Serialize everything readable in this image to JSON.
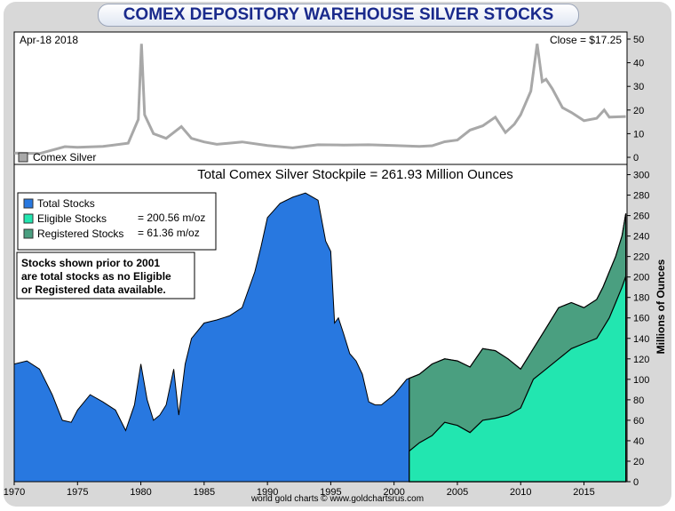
{
  "page": {
    "title": "COMEX DEPOSITORY WAREHOUSE SILVER STOCKS",
    "footer": "world gold charts © www.goldchartsrus.com"
  },
  "colors": {
    "total": "#2878e0",
    "eligible": "#22e6b0",
    "registered": "#4a9f80",
    "silver_line": "#a8a8a8",
    "title_text": "#1a2a8c",
    "note_text": "#1010cc"
  },
  "top_panel": {
    "date_label": "Apr-18  2018",
    "close_label": "Close = $17.25",
    "legend_label": "Comex Silver"
  },
  "main_panel": {
    "stockpile_label": "Total Comex Silver Stockpile = 261.93 Million Ounces",
    "legend": [
      {
        "label": "Total Stocks",
        "color": "#2878e0",
        "value": ""
      },
      {
        "label": "Eligible Stocks",
        "color": "#22e6b0",
        "value": "= 200.56 m/oz"
      },
      {
        "label": "Registered Stocks",
        "color": "#4a9f80",
        "value": "= 61.36 m/oz"
      }
    ],
    "note_lines": [
      "Stocks shown prior to 2001",
      "are total stocks as no Eligible",
      "or Registered data available."
    ],
    "y_axis_label": "Millions of Ounces"
  },
  "chart_data": [
    {
      "type": "line",
      "title": "Comex Silver",
      "ylabel": "",
      "xlabel": "",
      "ylim": [
        -3,
        53
      ],
      "y_ticks": [
        0,
        10,
        20,
        30,
        40,
        50
      ],
      "series": [
        {
          "name": "Comex Silver",
          "x": [
            1970,
            1972,
            1974,
            1975,
            1977,
            1979,
            1979.8,
            1980.05,
            1980.3,
            1981,
            1982,
            1983.2,
            1984,
            1985,
            1986,
            1988,
            1990,
            1992,
            1994,
            1996,
            1998,
            2000,
            2002,
            2003,
            2004,
            2005,
            2006,
            2007,
            2008,
            2008.8,
            2009.5,
            2010,
            2010.8,
            2011.3,
            2011.7,
            2012,
            2012.5,
            2013.3,
            2014,
            2015,
            2016,
            2016.6,
            2017,
            2018.3
          ],
          "y": [
            1.8,
            1.6,
            4.5,
            4.2,
            4.6,
            6.0,
            16,
            48,
            18,
            10,
            8,
            13,
            8,
            6.5,
            5.5,
            6.5,
            5.0,
            4.0,
            5.3,
            5.2,
            5.3,
            5.0,
            4.6,
            4.9,
            6.6,
            7.3,
            11.5,
            13.3,
            17,
            10.5,
            14,
            18,
            28,
            48,
            32,
            33,
            29,
            21,
            19,
            15.5,
            16.5,
            20,
            17,
            17.25
          ]
        }
      ]
    },
    {
      "type": "area",
      "title": "Total Comex Silver Stockpile = 261.93 Million Ounces",
      "xlabel": "",
      "ylabel": "Millions of Ounces",
      "xlim": [
        1970,
        2018.4
      ],
      "ylim": [
        0,
        310
      ],
      "y_ticks": [
        0,
        20,
        40,
        60,
        80,
        100,
        120,
        140,
        160,
        180,
        200,
        220,
        240,
        260,
        280,
        300
      ],
      "x_ticks": [
        1970,
        1975,
        1980,
        1985,
        1990,
        1995,
        2000,
        2005,
        2010,
        2015
      ],
      "series": [
        {
          "name": "Total Stocks",
          "x": [
            1970,
            1971,
            1972,
            1973,
            1973.8,
            1974.5,
            1975,
            1976,
            1977,
            1978,
            1978.8,
            1979.5,
            1980,
            1980.5,
            1981,
            1981.5,
            1982,
            1982.6,
            1983,
            1983.5,
            1984,
            1985,
            1986,
            1987,
            1988,
            1989,
            1989.5,
            1990,
            1990.5,
            1991,
            1992,
            1993,
            1994,
            1994.6,
            1995,
            1995.3,
            1995.6,
            1996,
            1996.5,
            1997,
            1997.5,
            1998,
            1998.5,
            1999,
            2000,
            2001,
            2002,
            2003,
            2004,
            2005,
            2006,
            2007,
            2008,
            2009,
            2010,
            2011,
            2012,
            2013,
            2014,
            2015,
            2016,
            2016.5,
            2017,
            2017.5,
            2018,
            2018.3
          ],
          "y": [
            115,
            118,
            110,
            85,
            60,
            58,
            70,
            85,
            78,
            70,
            50,
            75,
            115,
            80,
            60,
            65,
            75,
            110,
            65,
            115,
            140,
            155,
            158,
            162,
            170,
            205,
            230,
            258,
            265,
            272,
            278,
            282,
            275,
            235,
            225,
            155,
            160,
            145,
            125,
            118,
            105,
            78,
            75,
            75,
            85,
            100,
            105,
            115,
            120,
            118,
            112,
            130,
            128,
            120,
            110,
            130,
            150,
            170,
            175,
            170,
            178,
            190,
            205,
            220,
            240,
            262
          ]
        },
        {
          "name": "Eligible Stocks",
          "x": [
            2001.2,
            2002,
            2003,
            2004,
            2005,
            2006,
            2007,
            2008,
            2009,
            2010,
            2011,
            2012,
            2013,
            2014,
            2015,
            2016,
            2016.5,
            2017,
            2017.5,
            2018,
            2018.3
          ],
          "y": [
            30,
            38,
            45,
            58,
            55,
            48,
            60,
            62,
            65,
            72,
            100,
            110,
            120,
            130,
            135,
            140,
            150,
            160,
            175,
            190,
            200.56
          ]
        },
        {
          "name": "Registered Stocks",
          "x": [
            2018.3
          ],
          "y": [
            61.36
          ]
        }
      ]
    }
  ]
}
